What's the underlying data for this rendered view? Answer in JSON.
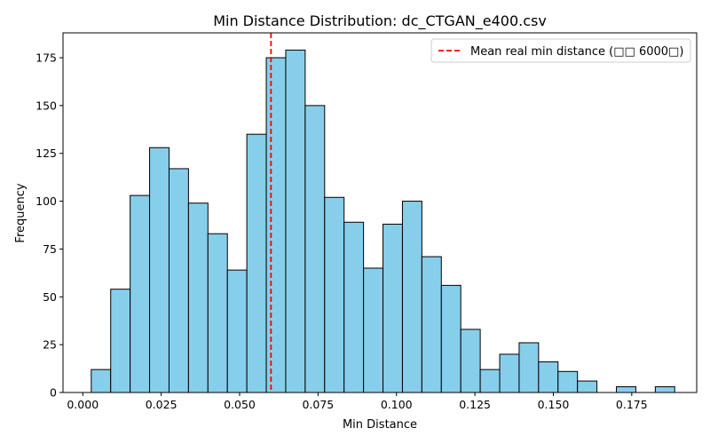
{
  "chart_data": {
    "type": "bar",
    "title": "Min Distance Distribution: dc_CTGAN_e400.csv",
    "xlabel": "Min Distance",
    "ylabel": "Frequency",
    "xlim": [
      -0.0063,
      0.1957
    ],
    "ylim": [
      0,
      188
    ],
    "xticks": [
      0.0,
      0.025,
      0.05,
      0.075,
      0.1,
      0.125,
      0.15,
      0.175
    ],
    "xtick_labels": [
      "0.000",
      "0.025",
      "0.050",
      "0.075",
      "0.100",
      "0.125",
      "0.150",
      "0.175"
    ],
    "yticks": [
      0,
      25,
      50,
      75,
      100,
      125,
      150,
      175
    ],
    "ytick_labels": [
      "0",
      "25",
      "50",
      "75",
      "100",
      "125",
      "150",
      "175"
    ],
    "bin_start": 0.0027,
    "bin_width": 0.0062,
    "values": [
      12,
      54,
      103,
      128,
      117,
      99,
      83,
      64,
      135,
      175,
      179,
      150,
      102,
      89,
      65,
      88,
      100,
      71,
      56,
      33,
      12,
      20,
      26,
      16,
      11,
      6,
      0,
      3,
      0,
      3
    ],
    "bar_color": "#87ceeb",
    "edge_color": "#000000",
    "mean_line": {
      "x": 0.06,
      "color": "#ff0000",
      "label": "Mean real min distance (□□ 6000□)"
    },
    "legend_position": "upper-right",
    "grid": false
  }
}
